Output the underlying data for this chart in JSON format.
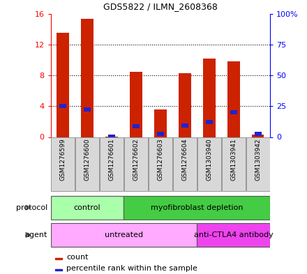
{
  "title": "GDS5822 / ILMN_2608368",
  "samples": [
    "GSM1276599",
    "GSM1276600",
    "GSM1276601",
    "GSM1276602",
    "GSM1276603",
    "GSM1276604",
    "GSM1303940",
    "GSM1303941",
    "GSM1303942"
  ],
  "count_values": [
    13.5,
    15.3,
    0.05,
    8.5,
    3.6,
    8.3,
    10.2,
    9.8,
    0.35
  ],
  "percentile_values": [
    25.0,
    22.5,
    0.5,
    9.0,
    2.5,
    9.5,
    12.0,
    20.0,
    2.5
  ],
  "left_ylim": [
    0,
    16
  ],
  "right_ylim": [
    0,
    100
  ],
  "left_yticks": [
    0,
    4,
    8,
    12,
    16
  ],
  "right_yticks": [
    0,
    25,
    50,
    75,
    100
  ],
  "right_yticklabels": [
    "0",
    "25",
    "50",
    "75",
    "100%"
  ],
  "bar_color": "#cc2200",
  "percentile_color": "#2222cc",
  "protocol_groups": [
    {
      "label": "control",
      "start": 0,
      "end": 3,
      "color": "#aaffaa"
    },
    {
      "label": "myofibroblast depletion",
      "start": 3,
      "end": 9,
      "color": "#44cc44"
    }
  ],
  "agent_groups": [
    {
      "label": "untreated",
      "start": 0,
      "end": 6,
      "color": "#ffaaff"
    },
    {
      "label": "anti-CTLA4 antibody",
      "start": 6,
      "end": 9,
      "color": "#ee44ee"
    }
  ],
  "legend_count_label": "count",
  "legend_percentile_label": "percentile rank within the sample",
  "protocol_label": "protocol",
  "agent_label": "agent",
  "sample_bg_color": "#d8d8d8",
  "bar_width": 0.5,
  "xlim": [
    -0.5,
    8.5
  ]
}
